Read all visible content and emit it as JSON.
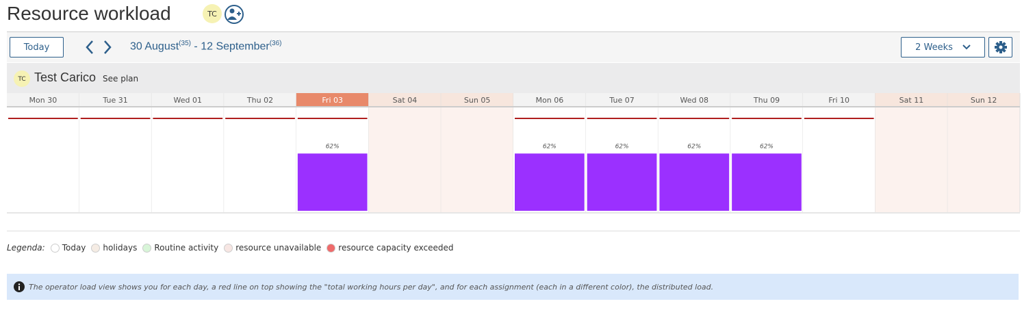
{
  "header": {
    "title": "Resource workload",
    "avatar": "TC"
  },
  "toolbar": {
    "today_button": "Today",
    "range_start": "30 August",
    "range_start_week": "(35)",
    "separator": "-",
    "range_end": "12 September",
    "range_end_week": "(36)",
    "period": "2 Weeks"
  },
  "resource": {
    "avatar": "TC",
    "name": "Test Carico",
    "see_plan": "See plan"
  },
  "days": [
    {
      "label": "Mon 30"
    },
    {
      "label": "Tue 31"
    },
    {
      "label": "Wed 01"
    },
    {
      "label": "Thu 02"
    },
    {
      "label": "Fri 03",
      "today": true,
      "load": 62,
      "load_label": "62%"
    },
    {
      "label": "Sat 04",
      "off": true
    },
    {
      "label": "Sun 05",
      "off": true
    },
    {
      "label": "Mon 06",
      "load": 62,
      "load_label": "62%"
    },
    {
      "label": "Tue 07",
      "load": 62,
      "load_label": "62%"
    },
    {
      "label": "Wed 08",
      "load": 62,
      "load_label": "62%"
    },
    {
      "label": "Thu 09",
      "load": 62,
      "load_label": "62%"
    },
    {
      "label": "Fri 10"
    },
    {
      "label": "Sat 11",
      "off": true
    },
    {
      "label": "Sun 12",
      "off": true
    }
  ],
  "legend": {
    "title": "Legenda:",
    "items": [
      {
        "label": "Today",
        "color": "#ffffff"
      },
      {
        "label": "holidays",
        "color": "#f5ece4"
      },
      {
        "label": "Routine activity",
        "color": "#d8f5d8"
      },
      {
        "label": "resource unavailable",
        "color": "#f7e6e3"
      },
      {
        "label": "resource capacity exceeded",
        "color": "#ef6b6b"
      }
    ]
  },
  "info": "The operator load view shows you for each day, a red line on top showing the \"total working hours per day\", and for each assignment (each in a different color), the distributed load."
}
